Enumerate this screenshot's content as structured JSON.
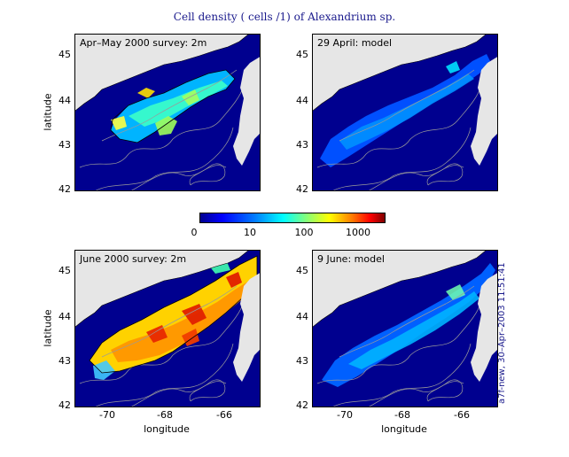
{
  "title": "Cell density ( cells /1) of Alexandrium sp.",
  "panels": [
    {
      "label": "Apr–May 2000 survey: 2m",
      "kind": "survey1"
    },
    {
      "label": "29 April: model",
      "kind": "model1"
    },
    {
      "label": "June 2000 survey: 2m",
      "kind": "survey2"
    },
    {
      "label": "9 June: model",
      "kind": "model2"
    }
  ],
  "axes": {
    "ylabel": "latitude",
    "xlabel": "longitude",
    "yticks": [
      "45",
      "44",
      "43",
      "42"
    ],
    "xticks": [
      "-70",
      "-68",
      "-66"
    ],
    "lat_range": [
      42,
      45.5
    ],
    "lon_range": [
      -71.2,
      -65
    ]
  },
  "colorbar": {
    "ticks": [
      "0",
      "10",
      "100",
      "1000"
    ],
    "scale": "log",
    "colormap": "jet"
  },
  "stamp": "a7f-new, 30–Apr–2003 11:51:41",
  "colors": {
    "land": "#e6e6e6",
    "deep_water": "#00008f",
    "title_text": "#1a1a8c"
  }
}
